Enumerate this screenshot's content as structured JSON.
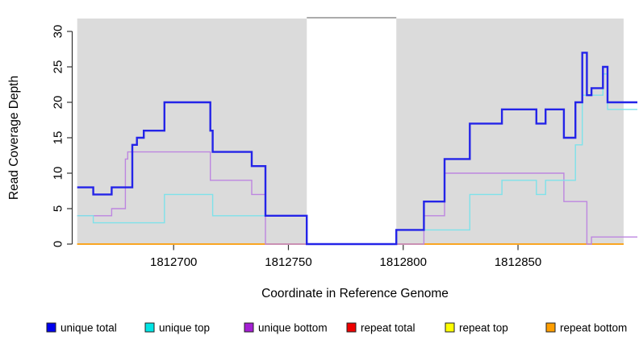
{
  "chart_data": {
    "type": "line",
    "subtype": "step",
    "title": "",
    "xlabel": "Coordinate in Reference Genome",
    "ylabel": "Read Coverage Depth",
    "xlim": [
      1812656,
      1812902
    ],
    "ylim": [
      0,
      31
    ],
    "x_ticks": [
      1812700,
      1812750,
      1812800,
      1812850
    ],
    "y_ticks": [
      0,
      5,
      10,
      15,
      20,
      25,
      30
    ],
    "grid": false,
    "legend_position": "bottom",
    "panel_background": "#dbdbdb",
    "no_data_gap": [
      1812758,
      1812797
    ],
    "shaded_regions": [
      [
        1812658,
        1812758
      ],
      [
        1812797,
        1812896
      ]
    ],
    "series": [
      {
        "name": "unique total",
        "color": "#2424e8",
        "legend_color": "#0000ee",
        "line_width": 2.4,
        "end_x": 1812902,
        "steps": [
          [
            1812658,
            8
          ],
          [
            1812665,
            7
          ],
          [
            1812673,
            8
          ],
          [
            1812682,
            14
          ],
          [
            1812684,
            15
          ],
          [
            1812687,
            16
          ],
          [
            1812696,
            20
          ],
          [
            1812716,
            16
          ],
          [
            1812717,
            13
          ],
          [
            1812734,
            11
          ],
          [
            1812740,
            4
          ],
          [
            1812758,
            0
          ],
          [
            1812797,
            2
          ],
          [
            1812809,
            6
          ],
          [
            1812818,
            12
          ],
          [
            1812829,
            17
          ],
          [
            1812843,
            19
          ],
          [
            1812858,
            17
          ],
          [
            1812862,
            19
          ],
          [
            1812870,
            15
          ],
          [
            1812875,
            20
          ],
          [
            1812878,
            27
          ],
          [
            1812880,
            21
          ],
          [
            1812882,
            22
          ],
          [
            1812887,
            25
          ],
          [
            1812889,
            20
          ]
        ]
      },
      {
        "name": "unique top",
        "color": "#7ee2ea",
        "legend_color": "#00e5e5",
        "line_width": 1.4,
        "end_x": 1812902,
        "steps": [
          [
            1812658,
            4
          ],
          [
            1812665,
            3
          ],
          [
            1812696,
            7
          ],
          [
            1812717,
            4
          ],
          [
            1812758,
            0
          ],
          [
            1812797,
            2
          ],
          [
            1812829,
            7
          ],
          [
            1812843,
            9
          ],
          [
            1812858,
            7
          ],
          [
            1812862,
            9
          ],
          [
            1812875,
            14
          ],
          [
            1812878,
            21
          ],
          [
            1812887,
            24
          ],
          [
            1812889,
            19
          ]
        ]
      },
      {
        "name": "unique bottom",
        "color": "#bd86e0",
        "legend_color": "#a51fd4",
        "line_width": 1.4,
        "end_x": 1812902,
        "steps": [
          [
            1812658,
            4
          ],
          [
            1812673,
            5
          ],
          [
            1812679,
            12
          ],
          [
            1812680,
            13
          ],
          [
            1812716,
            9
          ],
          [
            1812734,
            7
          ],
          [
            1812740,
            0
          ],
          [
            1812809,
            4
          ],
          [
            1812818,
            10
          ],
          [
            1812870,
            6
          ],
          [
            1812880,
            0
          ],
          [
            1812882,
            1
          ]
        ]
      },
      {
        "name": "repeat total",
        "color": "#e03545",
        "legend_color": "#ee0000",
        "line_width": 1.4,
        "end_x": 1812896,
        "steps": [
          [
            1812658,
            0
          ]
        ]
      },
      {
        "name": "repeat top",
        "color": "#f2f20a",
        "legend_color": "#ffff00",
        "line_width": 1.4,
        "end_x": 1812896,
        "steps": [
          [
            1812658,
            0
          ]
        ]
      },
      {
        "name": "repeat bottom",
        "color": "#ff9d14",
        "legend_color": "#ff9e00",
        "line_width": 1.4,
        "end_x": 1812896,
        "steps": [
          [
            1812658,
            0
          ]
        ]
      }
    ]
  },
  "legend": {
    "items": [
      {
        "label": "unique total"
      },
      {
        "label": "unique top"
      },
      {
        "label": "unique bottom"
      },
      {
        "label": "repeat total"
      },
      {
        "label": "repeat top"
      },
      {
        "label": "repeat bottom"
      }
    ]
  }
}
